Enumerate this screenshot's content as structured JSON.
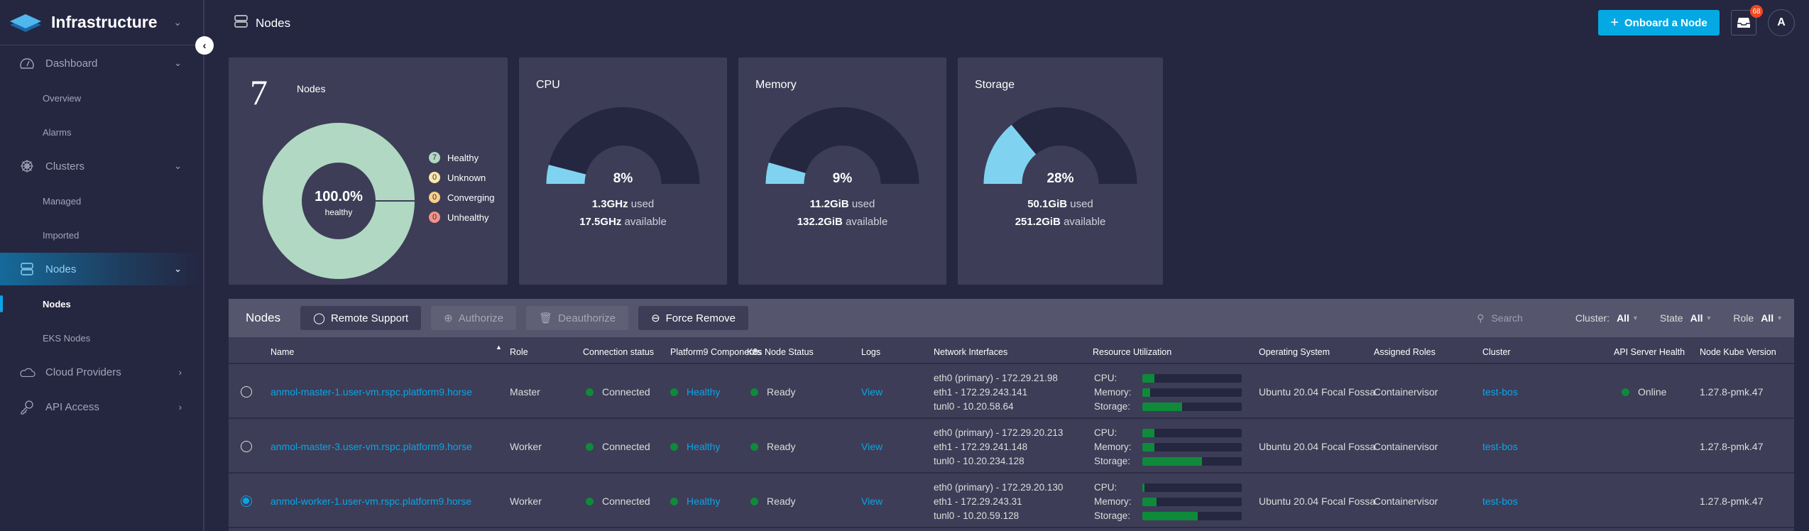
{
  "sidebar": {
    "app_title": "Infrastructure",
    "items": [
      {
        "label": "Dashboard",
        "icon": "gauge-icon",
        "subitems": [
          "Overview",
          "Alarms"
        ]
      },
      {
        "label": "Clusters",
        "icon": "helm-icon",
        "subitems": [
          "Managed",
          "Imported"
        ]
      },
      {
        "label": "Nodes",
        "icon": "server-icon",
        "active": true,
        "subitems": [
          "Nodes",
          "EKS Nodes"
        ]
      },
      {
        "label": "Cloud Providers",
        "icon": "cloud-icon"
      },
      {
        "label": "API Access",
        "icon": "key-icon"
      }
    ]
  },
  "header": {
    "title": "Nodes",
    "onboard_label": "Onboard a Node",
    "notification_count": "68",
    "avatar_initial": "A"
  },
  "summary": {
    "nodes": {
      "count": "7",
      "label": "Nodes",
      "center_value": "100.0%",
      "center_label": "healthy",
      "legend": [
        {
          "count": "7",
          "label": "Healthy",
          "color": "#b1d8c3"
        },
        {
          "count": "0",
          "label": "Unknown",
          "color": "#fbe7ae"
        },
        {
          "count": "0",
          "label": "Converging",
          "color": "#f9cf8a"
        },
        {
          "count": "0",
          "label": "Unhealthy",
          "color": "#f4918a"
        }
      ]
    },
    "cpu": {
      "title": "CPU",
      "percent": 8,
      "percent_label": "8%",
      "used": "1.3GHz",
      "used_suffix": "used",
      "available": "17.5GHz",
      "available_suffix": "available"
    },
    "memory": {
      "title": "Memory",
      "percent": 9,
      "percent_label": "9%",
      "used": "11.2GiB",
      "used_suffix": "used",
      "available": "132.2GiB",
      "available_suffix": "available"
    },
    "storage": {
      "title": "Storage",
      "percent": 28,
      "percent_label": "28%",
      "used": "50.1GiB",
      "used_suffix": "used",
      "available": "251.2GiB",
      "available_suffix": "available"
    },
    "gauge_fill_color": "#7fd3f0",
    "gauge_track_color": "#252640"
  },
  "table": {
    "title": "Nodes",
    "buttons": {
      "remote_support": "Remote Support",
      "authorize": "Authorize",
      "deauthorize": "Deauthorize",
      "force_remove": "Force Remove"
    },
    "search_placeholder": "Search",
    "filters": {
      "cluster_label": "Cluster:",
      "cluster_value": "All",
      "state_label": "State",
      "state_value": "All",
      "role_label": "Role",
      "role_value": "All"
    },
    "columns": [
      "Name",
      "Role",
      "Connection status",
      "Platform9 Components",
      "K8s Node Status",
      "Logs",
      "Network Interfaces",
      "Resource Utilization",
      "Operating System",
      "Assigned Roles",
      "Cluster",
      "API Server Health",
      "Node Kube Version"
    ],
    "resource_labels": [
      "CPU:",
      "Memory:",
      "Storage:"
    ],
    "rows": [
      {
        "selected": false,
        "name": "anmol-master-1.user-vm.rspc.platform9.horse",
        "role": "Master",
        "connection": "Connected",
        "components": "Healthy",
        "k8s_status": "Ready",
        "logs": "View",
        "interfaces": [
          "eth0 (primary) - 172.29.21.98",
          "eth1 - 172.29.243.141",
          "tunl0 - 10.20.58.64"
        ],
        "cpu": 0.12,
        "memory": 0.08,
        "storage": 0.4,
        "os": "Ubuntu 20.04 Focal Fossa",
        "assigned_roles": "Containervisor",
        "cluster": "test-bos",
        "api_health": "Online",
        "kube_version": "1.27.8-pmk.47"
      },
      {
        "selected": false,
        "name": "anmol-master-3.user-vm.rspc.platform9.horse",
        "role": "Worker",
        "connection": "Connected",
        "components": "Healthy",
        "k8s_status": "Ready",
        "logs": "View",
        "interfaces": [
          "eth0 (primary) - 172.29.20.213",
          "eth1 - 172.29.241.148",
          "tunl0 - 10.20.234.128"
        ],
        "cpu": 0.12,
        "memory": 0.12,
        "storage": 0.6,
        "os": "Ubuntu 20.04 Focal Fossa",
        "assigned_roles": "Containervisor",
        "cluster": "test-bos",
        "api_health": "",
        "kube_version": "1.27.8-pmk.47"
      },
      {
        "selected": true,
        "name": "anmol-worker-1.user-vm.rspc.platform9.horse",
        "role": "Worker",
        "connection": "Connected",
        "components": "Healthy",
        "k8s_status": "Ready",
        "logs": "View",
        "interfaces": [
          "eth0 (primary) - 172.29.20.130",
          "eth1 - 172.29.243.31",
          "tunl0 - 10.20.59.128"
        ],
        "cpu": 0.02,
        "memory": 0.14,
        "storage": 0.56,
        "os": "Ubuntu 20.04 Focal Fossa",
        "assigned_roles": "Containervisor",
        "cluster": "test-bos",
        "api_health": "",
        "kube_version": "1.27.8-pmk.47"
      }
    ]
  }
}
